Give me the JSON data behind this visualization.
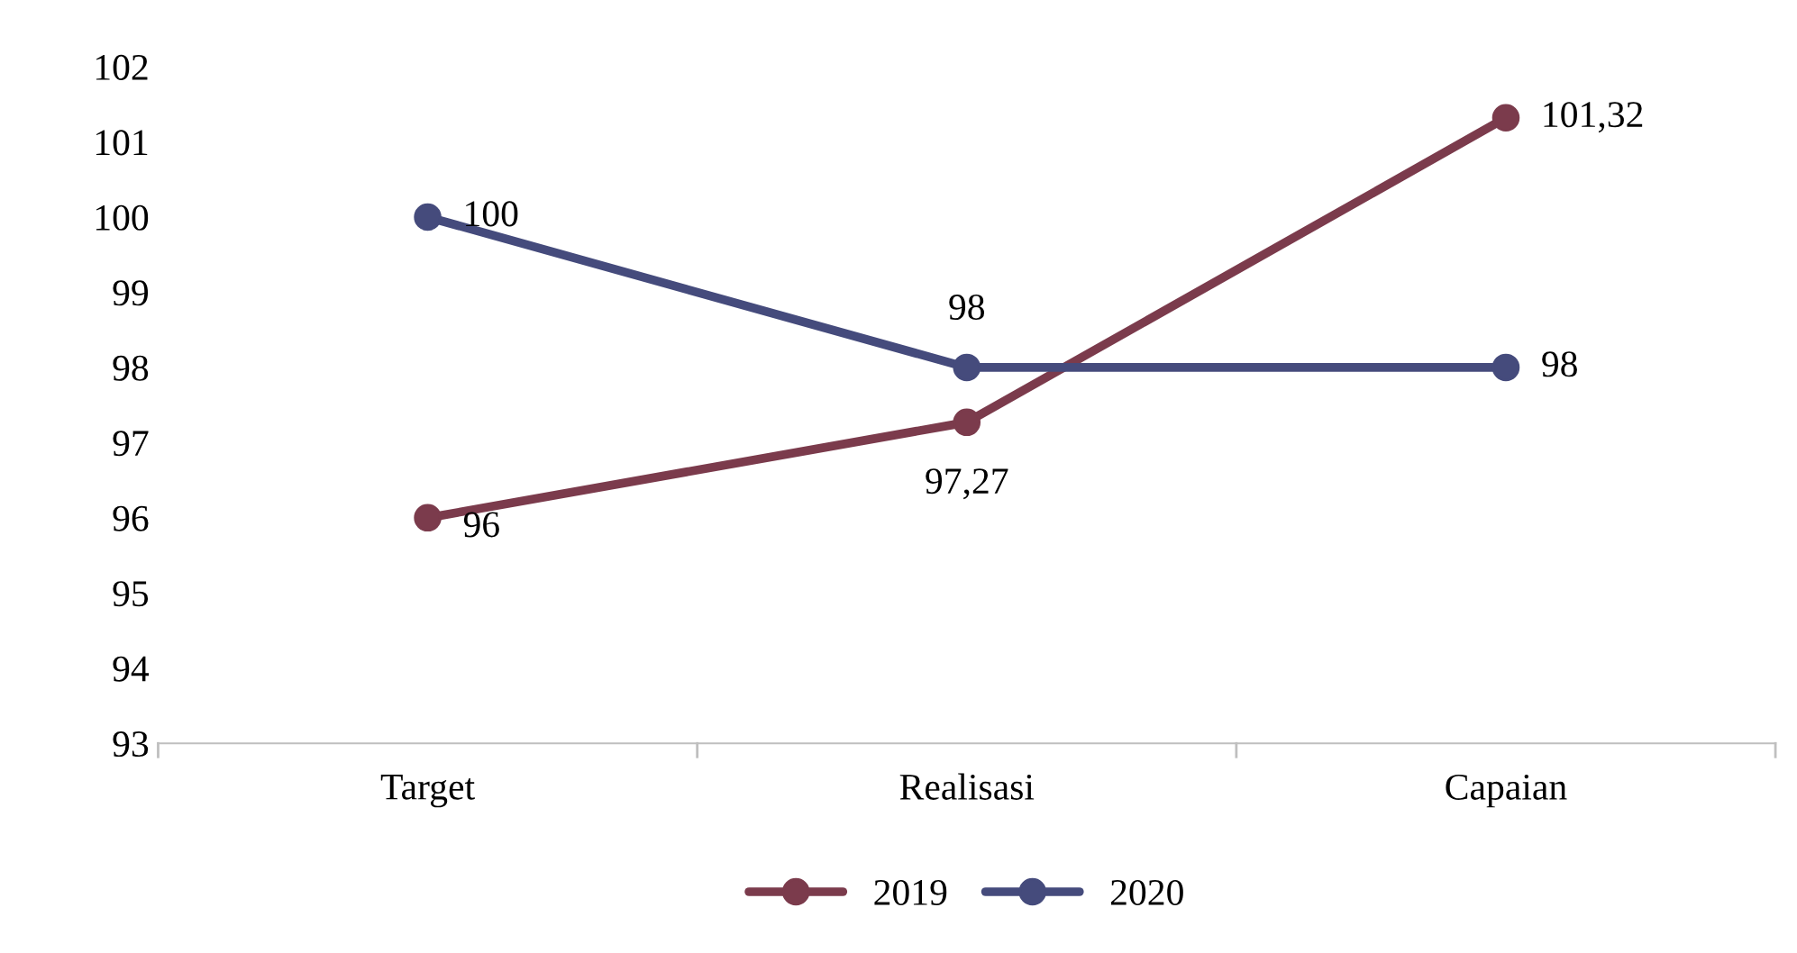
{
  "chart_data": {
    "type": "line",
    "categories": [
      "Target",
      "Realisasi",
      "Capaian"
    ],
    "series": [
      {
        "name": "2019",
        "color": "#7b3b4c",
        "values": [
          96,
          97.27,
          101.32
        ],
        "value_labels": [
          "96",
          "97,27",
          "101,32"
        ]
      },
      {
        "name": "2020",
        "color": "#454b7c",
        "values": [
          100,
          98,
          98
        ],
        "value_labels": [
          "100",
          "98",
          "98"
        ]
      }
    ],
    "ylim": [
      93,
      102
    ],
    "yticks": [
      93,
      94,
      95,
      96,
      97,
      98,
      99,
      100,
      101,
      102
    ],
    "legend": "bottom",
    "marker": "circle"
  }
}
